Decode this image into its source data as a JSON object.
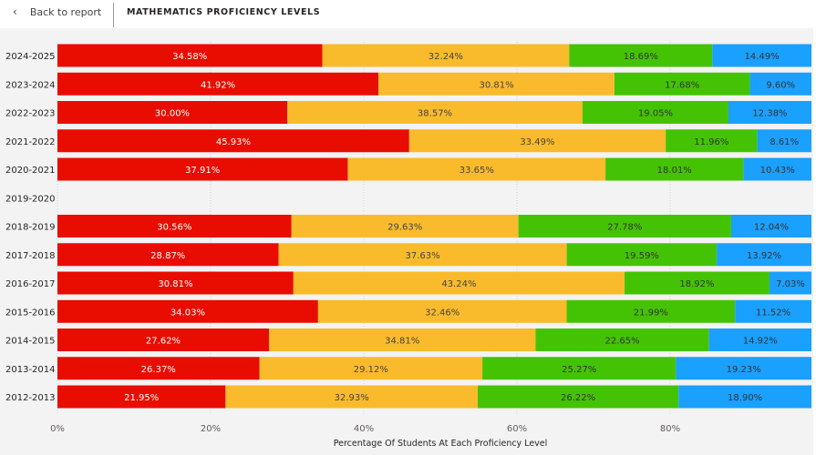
{
  "header": {
    "back_label": "Back to report",
    "title": "MATHEMATICS PROFICIENCY LEVELS"
  },
  "chart_data": {
    "type": "bar",
    "orientation": "horizontal-stacked-100",
    "title": "MATHEMATICS PROFICIENCY LEVELS",
    "xlabel": "Percentage Of Students At Each Proficiency Level",
    "ylabel": "",
    "xlim": [
      0,
      100
    ],
    "x_ticks": [
      "0%",
      "20%",
      "40%",
      "60%",
      "80%"
    ],
    "grid": true,
    "categories": [
      "2024-2025",
      "2023-2024",
      "2022-2023",
      "2021-2022",
      "2020-2021",
      "2019-2020",
      "2018-2019",
      "2017-2018",
      "2016-2017",
      "2015-2016",
      "2014-2015",
      "2013-2014",
      "2012-2013"
    ],
    "series": [
      {
        "color": "#e80d00",
        "label_color": "#ffffff",
        "values": [
          34.58,
          41.92,
          30.0,
          45.93,
          37.91,
          null,
          30.56,
          28.87,
          30.81,
          34.03,
          27.62,
          26.37,
          21.95
        ]
      },
      {
        "color": "#f9bb2b",
        "label_color": "#444444",
        "values": [
          32.24,
          30.81,
          38.57,
          33.49,
          33.65,
          null,
          29.63,
          37.63,
          43.24,
          32.46,
          34.81,
          29.12,
          32.93
        ]
      },
      {
        "color": "#44c305",
        "label_color": "#333333",
        "values": [
          18.69,
          17.68,
          19.05,
          11.96,
          18.01,
          null,
          27.78,
          19.59,
          18.92,
          21.99,
          22.65,
          25.27,
          26.22
        ]
      },
      {
        "color": "#1aa0ff",
        "label_color": "#333333",
        "values": [
          14.49,
          9.6,
          12.38,
          8.61,
          10.43,
          null,
          12.04,
          13.92,
          7.03,
          11.52,
          14.92,
          19.23,
          18.9
        ]
      }
    ]
  }
}
